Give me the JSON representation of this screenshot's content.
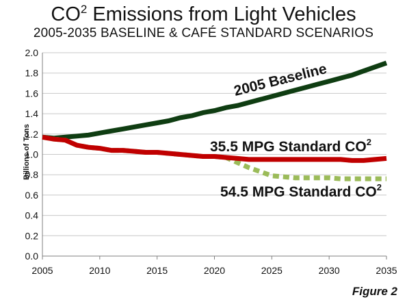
{
  "title": {
    "main": "CO",
    "sup": "2",
    "rest": " Emissions from Light Vehicles"
  },
  "subtitle": "2005-2035 BASELINE & CAFÉ STANDARD SCENARIOS",
  "figure_label": "Figure 2",
  "chart_data": {
    "type": "line",
    "ylabel": "Billions of Tons",
    "xlabel": "",
    "xlim": [
      2005,
      2035
    ],
    "ylim": [
      0.0,
      2.0
    ],
    "x_ticks": [
      "2005",
      "2010",
      "2015",
      "2020",
      "2025",
      "2030",
      "2035"
    ],
    "y_ticks": [
      "0.0",
      "0.2",
      "0.4",
      "0.6",
      "0.8",
      "1.0",
      "1.2",
      "1.4",
      "1.6",
      "1.8",
      "2.0"
    ],
    "grid": "horizontal",
    "x": [
      2005,
      2006,
      2007,
      2008,
      2009,
      2010,
      2011,
      2012,
      2013,
      2014,
      2015,
      2016,
      2017,
      2018,
      2019,
      2020,
      2021,
      2022,
      2023,
      2024,
      2025,
      2026,
      2027,
      2028,
      2029,
      2030,
      2031,
      2032,
      2033,
      2034,
      2035
    ],
    "series": [
      {
        "name": "2005 Baseline",
        "color": "#0f3d12",
        "style": "solid",
        "values": [
          1.17,
          1.16,
          1.17,
          1.18,
          1.19,
          1.21,
          1.23,
          1.25,
          1.27,
          1.29,
          1.31,
          1.33,
          1.36,
          1.38,
          1.41,
          1.43,
          1.46,
          1.48,
          1.51,
          1.54,
          1.57,
          1.6,
          1.63,
          1.66,
          1.69,
          1.72,
          1.75,
          1.78,
          1.82,
          1.86,
          1.9
        ]
      },
      {
        "name": "35.5 MPG Standard CO",
        "name_sup": "2",
        "color": "#c00000",
        "style": "solid",
        "values": [
          1.17,
          1.15,
          1.14,
          1.09,
          1.07,
          1.06,
          1.04,
          1.04,
          1.03,
          1.02,
          1.02,
          1.01,
          1.0,
          0.99,
          0.98,
          0.98,
          0.97,
          0.96,
          0.95,
          0.95,
          0.95,
          0.95,
          0.95,
          0.95,
          0.95,
          0.95,
          0.95,
          0.94,
          0.94,
          0.95,
          0.96
        ]
      },
      {
        "name": "54.5 MPG Standard CO",
        "name_sup": "2",
        "color": "#9bbb59",
        "style": "dashed",
        "values": [
          1.17,
          1.15,
          1.14,
          1.09,
          1.07,
          1.06,
          1.04,
          1.04,
          1.03,
          1.02,
          1.02,
          1.01,
          1.0,
          0.99,
          0.98,
          0.98,
          0.97,
          0.92,
          0.87,
          0.83,
          0.79,
          0.78,
          0.77,
          0.77,
          0.77,
          0.77,
          0.76,
          0.76,
          0.76,
          0.76,
          0.76
        ]
      }
    ]
  }
}
